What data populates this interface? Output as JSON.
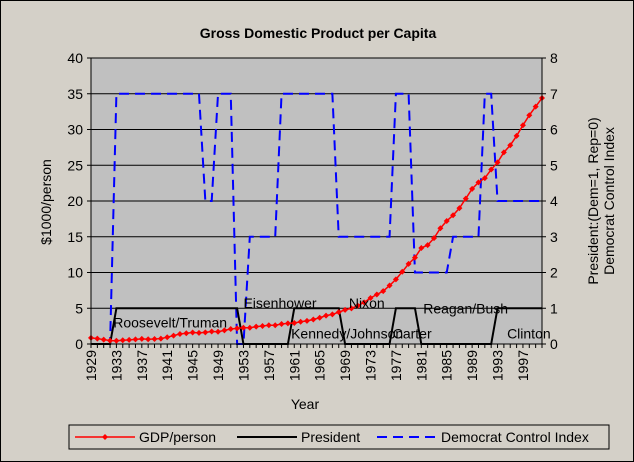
{
  "chart_data": {
    "type": "line",
    "title": "Gross Domestic Product per Capita",
    "xlabel": "Year",
    "ylabel": "$1000/person",
    "y2label": [
      "President:(Dem=1, Rep=0)",
      "Democrat Control Index"
    ],
    "xlim": [
      1929,
      2000
    ],
    "ylim": [
      0,
      40
    ],
    "y2lim": [
      0,
      8
    ],
    "x_ticks": [
      1929,
      1933,
      1937,
      1941,
      1945,
      1949,
      1953,
      1957,
      1961,
      1965,
      1969,
      1973,
      1977,
      1981,
      1985,
      1989,
      1993,
      1997
    ],
    "y_ticks": [
      0,
      5,
      10,
      15,
      20,
      25,
      30,
      35,
      40
    ],
    "y2_ticks": [
      0,
      1,
      2,
      3,
      4,
      5,
      6,
      7,
      8
    ],
    "grid": true,
    "legend_position": "bottom",
    "series": [
      {
        "name": "GDP/person",
        "axis": "left",
        "color": "#ff0000",
        "marker": "diamond",
        "x": [
          1929,
          1930,
          1931,
          1932,
          1933,
          1934,
          1935,
          1936,
          1937,
          1938,
          1939,
          1940,
          1941,
          1942,
          1943,
          1944,
          1945,
          1946,
          1947,
          1948,
          1949,
          1950,
          1951,
          1952,
          1953,
          1954,
          1955,
          1956,
          1957,
          1958,
          1959,
          1960,
          1961,
          1962,
          1963,
          1964,
          1965,
          1966,
          1967,
          1968,
          1969,
          1970,
          1971,
          1972,
          1973,
          1974,
          1975,
          1976,
          1977,
          1978,
          1979,
          1980,
          1981,
          1982,
          1983,
          1984,
          1985,
          1986,
          1987,
          1988,
          1989,
          1990,
          1991,
          1992,
          1993,
          1994,
          1995,
          1996,
          1997,
          1998,
          1999,
          2000
        ],
        "y": [
          0.85,
          0.75,
          0.62,
          0.47,
          0.45,
          0.52,
          0.57,
          0.65,
          0.71,
          0.66,
          0.7,
          0.76,
          0.95,
          1.18,
          1.4,
          1.5,
          1.6,
          1.55,
          1.63,
          1.75,
          1.72,
          1.9,
          2.1,
          2.18,
          2.28,
          2.27,
          2.43,
          2.52,
          2.62,
          2.63,
          2.8,
          2.88,
          2.94,
          3.11,
          3.23,
          3.43,
          3.67,
          3.97,
          4.14,
          4.46,
          4.77,
          4.99,
          5.35,
          5.82,
          6.43,
          6.92,
          7.4,
          8.18,
          9.04,
          10.1,
          11.21,
          12.08,
          13.43,
          13.83,
          14.8,
          16.19,
          17.21,
          18.0,
          19.0,
          20.34,
          21.7,
          22.6,
          23.2,
          24.4,
          25.4,
          26.8,
          27.8,
          29.1,
          30.6,
          32.0,
          33.2,
          34.4
        ]
      },
      {
        "name": "President",
        "axis": "right",
        "color": "#000000",
        "x": [
          1929,
          1932,
          1933,
          1952,
          1953,
          1960,
          1961,
          1968,
          1969,
          1976,
          1977,
          1980,
          1981,
          1992,
          1993,
          2000
        ],
        "y": [
          0,
          0,
          1,
          1,
          0,
          0,
          1,
          1,
          0,
          0,
          1,
          1,
          0,
          0,
          1,
          1
        ]
      },
      {
        "name": "Democrat Control Index",
        "axis": "right",
        "color": "#0000ff",
        "dashed": true,
        "x": [
          1929,
          1932,
          1933,
          1946,
          1947,
          1948,
          1949,
          1951,
          1952,
          1953,
          1954,
          1955,
          1958,
          1959,
          1967,
          1968,
          1976,
          1977,
          1979,
          1980,
          1981,
          1985,
          1986,
          1990,
          1991,
          1992,
          1993,
          1994,
          2000
        ],
        "y": [
          0,
          0,
          7,
          7,
          4,
          4,
          7,
          7,
          0,
          0,
          3,
          3,
          3,
          7,
          7,
          3,
          3,
          7,
          7,
          2,
          2,
          2,
          3,
          3,
          7,
          7,
          4,
          4,
          4
        ]
      }
    ],
    "annotations": [
      {
        "text": "Roosevelt/Truman",
        "x": 1932.5,
        "y": 0.6
      },
      {
        "text": "Eisenhower",
        "x": 1953,
        "y": 1.15
      },
      {
        "text": "Kennedy/Johnson",
        "x": 1960.5,
        "y": 0.3
      },
      {
        "text": "Nixon",
        "x": 1969.6,
        "y": 1.15
      },
      {
        "text": "Carter",
        "x": 1976.5,
        "y": 0.3
      },
      {
        "text": "Reagan/Bush",
        "x": 1981.3,
        "y": 1.0
      },
      {
        "text": "Clinton",
        "x": 1994.5,
        "y": 0.3
      }
    ]
  }
}
